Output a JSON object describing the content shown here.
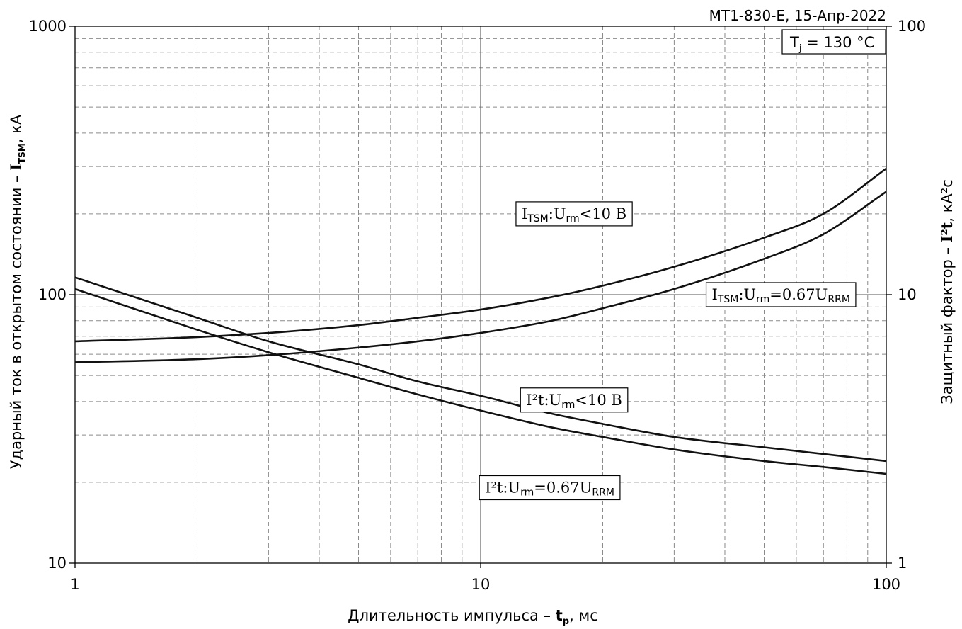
{
  "chart_data": {
    "type": "line",
    "header": "МТ1-830-Е, 15-Апр-2022",
    "condition_label": {
      "symbol": "T",
      "sub": "j",
      "rest": " = 130 °C"
    },
    "x_axis": {
      "scale": "log",
      "range": [
        1,
        100
      ],
      "ticks": [
        "1",
        "10",
        "100"
      ],
      "label_prefix": "Длительность импульса – ",
      "label_symbol": "t",
      "label_symbol_sub": "p",
      "label_suffix": ", мс"
    },
    "y_left_axis": {
      "scale": "log",
      "range": [
        10,
        1000
      ],
      "ticks": [
        "10",
        "100",
        "1000"
      ],
      "label_prefix": "Ударный ток в открытом состоянии – ",
      "label_symbol": "I",
      "label_symbol_sub": "TSM",
      "label_suffix": ", кА"
    },
    "y_right_axis": {
      "scale": "log",
      "range": [
        1,
        100
      ],
      "ticks": [
        "1",
        "10",
        "100"
      ],
      "label_prefix": "Защитный фактор – ",
      "label_symbol": "I²t",
      "label_suffix": ", кА²с"
    },
    "grid": true,
    "series": [
      {
        "name": "I_TSM : U_rm < 10 В",
        "axis": "left",
        "x": [
          1,
          2,
          3,
          5,
          7,
          10,
          15,
          20,
          30,
          50,
          70,
          100
        ],
        "y": [
          67,
          69.5,
          72,
          77,
          82,
          88,
          98,
          108,
          127,
          163,
          200,
          295
        ]
      },
      {
        "name": "I_TSM : U_rm = 0.67U_RRM",
        "axis": "left",
        "x": [
          1,
          2,
          3,
          5,
          7,
          10,
          15,
          20,
          30,
          50,
          70,
          100
        ],
        "y": [
          56,
          57.5,
          59.5,
          63.5,
          67,
          72,
          80,
          89,
          105,
          136,
          168,
          242
        ]
      },
      {
        "name": "I²t : U_rm < 10 В",
        "axis": "right",
        "x": [
          1,
          2,
          3,
          5,
          7,
          10,
          15,
          20,
          30,
          50,
          70,
          100
        ],
        "y": [
          11.6,
          8.2,
          6.7,
          5.5,
          4.75,
          4.2,
          3.6,
          3.3,
          2.95,
          2.7,
          2.55,
          2.4
        ]
      },
      {
        "name": "I²t : U_rm = 0.67U_RRM",
        "axis": "right",
        "x": [
          1,
          2,
          3,
          5,
          7,
          10,
          15,
          20,
          30,
          50,
          70,
          100
        ],
        "y": [
          10.5,
          7.4,
          6.1,
          4.9,
          4.25,
          3.7,
          3.2,
          2.95,
          2.65,
          2.4,
          2.28,
          2.15
        ]
      }
    ],
    "series_labels": [
      {
        "series": 0,
        "main": "I",
        "sub1": "TSM",
        "mid": ":U",
        "sub2": "rm",
        "tail": "<10 В",
        "tail_sub": "",
        "x": 17,
        "y": 200
      },
      {
        "series": 1,
        "main": "I",
        "sub1": "TSM",
        "mid": ":U",
        "sub2": "rm",
        "tail": "=0.67U",
        "tail_sub": "RRM",
        "x": 55,
        "y": 100
      },
      {
        "series": 2,
        "main": "I²t",
        "sub1": "",
        "mid": ":U",
        "sub2": "rm",
        "tail": "<10 В",
        "tail_sub": "",
        "x": 17,
        "y": 4.05
      },
      {
        "series": 3,
        "main": "I²t",
        "sub1": "",
        "mid": ":U",
        "sub2": "rm",
        "tail": "=0.67U",
        "tail_sub": "RRM",
        "x": 14.8,
        "y": 1.91
      }
    ]
  }
}
